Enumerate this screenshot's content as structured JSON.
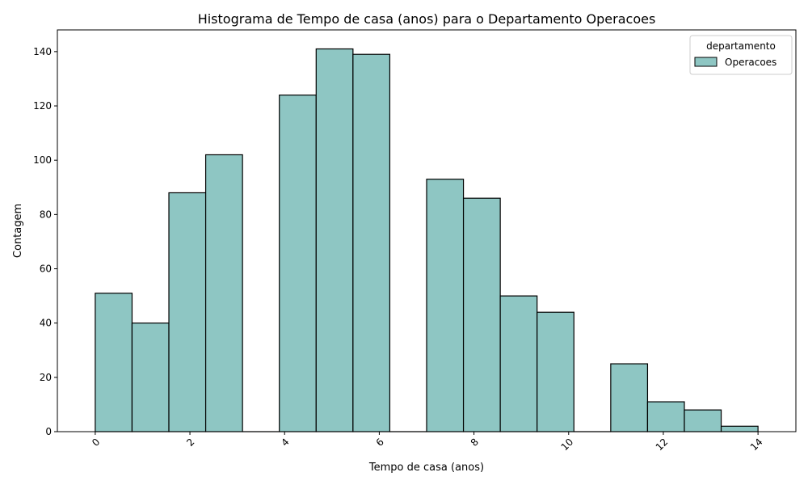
{
  "chart_data": {
    "type": "bar",
    "title": "Histograma de Tempo de casa (anos) para o Departamento Operacoes",
    "xlabel": "Tempo de casa (anos)",
    "ylabel": "Contagem",
    "xlim": [
      -0.8,
      14.8
    ],
    "ylim": [
      0,
      148
    ],
    "x_ticks": [
      0,
      2,
      4,
      6,
      8,
      10,
      12,
      14
    ],
    "x_tick_labels": [
      "0",
      "2",
      "4",
      "6",
      "8",
      "10",
      "12",
      "14"
    ],
    "y_ticks": [
      0,
      20,
      40,
      60,
      80,
      100,
      120,
      140
    ],
    "y_tick_labels": [
      "0",
      "20",
      "40",
      "60",
      "80",
      "100",
      "120",
      "140"
    ],
    "bin_edges": [
      0,
      0.7778,
      1.5556,
      2.3333,
      3.1111,
      3.8889,
      4.6667,
      5.4444,
      6.2222,
      7.0,
      7.7778,
      8.5556,
      9.3333,
      10.1111,
      10.8889,
      11.6667,
      12.4444,
      13.2222,
      14.0
    ],
    "counts": [
      51,
      40,
      88,
      102,
      0,
      124,
      141,
      139,
      0,
      93,
      86,
      50,
      44,
      0,
      25,
      11,
      8,
      2
    ],
    "series": [
      {
        "name": "Operacoes",
        "color": "#8ec6c3"
      }
    ],
    "legend": {
      "title": "departamento",
      "entries": [
        "Operacoes"
      ],
      "placement": "top-right"
    },
    "grid": false,
    "bar_color": "#8ec6c3",
    "edge_color": "#000000"
  }
}
